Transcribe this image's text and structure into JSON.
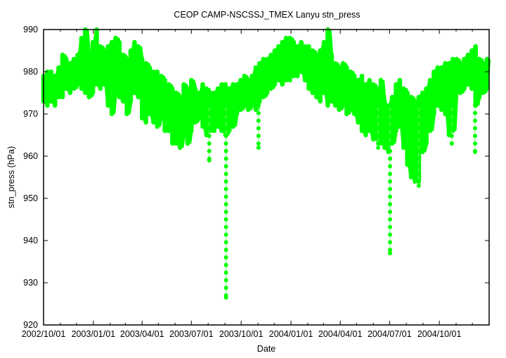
{
  "chart_data": {
    "type": "scatter",
    "title": "CEOP CAMP-NSCSSJ_TMEX Lanyu  stn_press",
    "xlabel": "Date",
    "ylabel": "stn_press (hPa)",
    "ylim": [
      920,
      990
    ],
    "xlim": [
      "2002-10-01",
      "2005-01-01"
    ],
    "yticks": [
      "920",
      "930",
      "940",
      "950",
      "960",
      "970",
      "980",
      "990"
    ],
    "xticks": [
      {
        "label": "2002/10/01",
        "date": "2002-10-01"
      },
      {
        "label": "2003/01/01",
        "date": "2003-01-01"
      },
      {
        "label": "2003/04/01",
        "date": "2003-04-01"
      },
      {
        "label": "2003/07/01",
        "date": "2003-07-01"
      },
      {
        "label": "2003/10/01",
        "date": "2003-10-01"
      },
      {
        "label": "2004/01/01",
        "date": "2004-01-01"
      },
      {
        "label": "2004/04/01",
        "date": "2004-04-01"
      },
      {
        "label": "2004/07/01",
        "date": "2004-07-01"
      },
      {
        "label": "2004/10/01",
        "date": "2004-10-01"
      }
    ],
    "grid": false,
    "color": "#00ff00",
    "series": [
      {
        "name": "stn_press",
        "start_date": "2002-10-01",
        "interval_days": 7,
        "low": [
          973,
          972,
          973,
          972,
          974,
          974,
          976,
          975,
          976,
          977,
          976,
          975,
          974,
          975,
          977,
          976,
          977,
          972,
          970,
          975,
          974,
          973,
          970,
          973,
          975,
          974,
          969,
          968,
          970,
          968,
          967,
          969,
          966,
          966,
          963,
          963,
          962,
          965,
          963,
          966,
          968,
          969,
          967,
          965,
          966,
          966,
          967,
          966,
          965,
          966,
          967,
          970,
          971,
          972,
          971,
          972,
          971,
          973,
          974,
          975,
          976,
          977,
          978,
          977,
          978,
          978,
          979,
          979,
          980,
          978,
          976,
          975,
          974,
          973,
          975,
          972,
          973,
          972,
          971,
          972,
          970,
          971,
          970,
          968,
          966,
          965,
          966,
          964,
          964,
          963,
          962,
          961,
          963,
          966,
          967,
          962,
          958,
          955,
          954,
          954,
          961,
          963,
          966,
          970,
          972,
          971,
          970,
          965,
          966,
          975,
          975,
          976,
          977,
          976,
          972,
          974,
          975,
          976
        ],
        "high": [
          979,
          980,
          980,
          979,
          981,
          984,
          983,
          982,
          983,
          984,
          988,
          990,
          984,
          987,
          990,
          986,
          985,
          986,
          987,
          988,
          987,
          984,
          983,
          985,
          987,
          986,
          983,
          982,
          981,
          980,
          980,
          979,
          978,
          977,
          976,
          975,
          974,
          977,
          976,
          978,
          976,
          975,
          977,
          976,
          975,
          975,
          976,
          977,
          977,
          976,
          977,
          977,
          978,
          979,
          978,
          979,
          981,
          982,
          983,
          983,
          984,
          985,
          986,
          987,
          988,
          988,
          987,
          986,
          987,
          986,
          986,
          985,
          984,
          985,
          987,
          990,
          984,
          982,
          981,
          982,
          981,
          980,
          979,
          978,
          979,
          977,
          978,
          977,
          976,
          978,
          973,
          972,
          974,
          977,
          978,
          976,
          975,
          974,
          973,
          974,
          975,
          976,
          978,
          980,
          981,
          981,
          982,
          982,
          983,
          983,
          982,
          983,
          984,
          985,
          986,
          983,
          982,
          983
        ],
        "dips": [
          {
            "date": "2003-08-03",
            "min": 959
          },
          {
            "date": "2003-09-03",
            "min": 926.5
          },
          {
            "date": "2003-11-02",
            "min": 962
          },
          {
            "date": "2004-06-10",
            "min": 962
          },
          {
            "date": "2004-07-02",
            "min": 937
          },
          {
            "date": "2004-08-24",
            "min": 953
          },
          {
            "date": "2004-10-24",
            "min": 963
          },
          {
            "date": "2004-12-06",
            "min": 961
          }
        ]
      }
    ]
  }
}
